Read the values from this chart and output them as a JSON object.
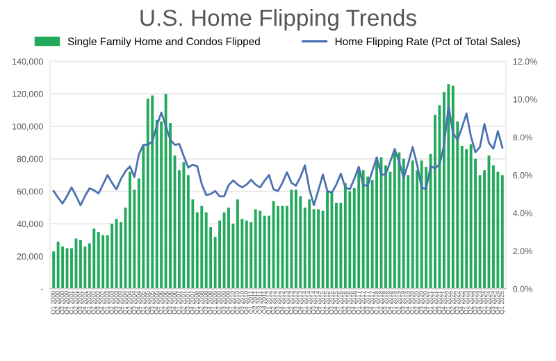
{
  "chart_data": {
    "type": "bar",
    "title": "U.S. Home Flipping Trends",
    "categories": [
      "Q1 2000",
      "Q2 2000",
      "Q3 2000",
      "Q4 2000",
      "Q1 2001",
      "Q2 2001",
      "Q3 2001",
      "Q4 2001",
      "Q1 2002",
      "Q2 2002",
      "Q3 2002",
      "Q4 2002",
      "Q1 2003",
      "Q2 2003",
      "Q3 2003",
      "Q4 2003",
      "Q1 2004",
      "Q2 2004",
      "Q3 2004",
      "Q4 2004",
      "Q1 2005",
      "Q2 2005",
      "Q3 2005",
      "Q4 2005",
      "Q1 2006",
      "Q2 2006",
      "Q3 2006",
      "Q4 2006",
      "Q1 2007",
      "Q2 2007",
      "Q3 2007",
      "Q4 2007",
      "Q1 2008",
      "Q2 2008",
      "Q3 2008",
      "Q4 2008",
      "Q1 2009",
      "Q2 2009",
      "Q3 2009",
      "Q4 2009",
      "Q1 2010",
      "Q2 2010",
      "Q3 2010",
      "Q4 2010",
      "Q1 2011",
      "Q2 2011",
      "Q3 2011",
      "Q4 2011",
      "Q1 2012",
      "Q2 2012",
      "Q3 2012",
      "Q4 2012",
      "Q1 2013",
      "Q2 2013",
      "Q3 2013",
      "Q4 2013",
      "Q1 2014",
      "Q2 2014",
      "Q3 2014",
      "Q4 2014",
      "Q1 2015",
      "Q2 2015",
      "Q3 2015",
      "Q4 2015",
      "Q1 2016",
      "Q2 2016",
      "Q3 2016",
      "Q4 2016",
      "Q1 2017",
      "Q2 2017",
      "Q3 2017",
      "Q4 2017",
      "Q1 2018",
      "Q2 2018",
      "Q3 2018",
      "Q4 2018",
      "Q1 2019",
      "Q2 2019",
      "Q3 2019",
      "Q4 2019",
      "Q1 2020",
      "Q2 2020",
      "Q3 2020",
      "Q4 2020",
      "Q1 2021",
      "Q2 2021",
      "Q3 2021",
      "Q4 2021",
      "Q1 2022",
      "Q2 2022",
      "Q3 2022",
      "Q4 2022",
      "Q1 2023",
      "Q2 2023",
      "Q3 2023",
      "Q4 2023",
      "Q1 2024",
      "Q2 2024",
      "Q3 2024",
      "Q4 2024",
      "Q1 2025"
    ],
    "series": [
      {
        "name": "Single Family Home and Condos Flipped",
        "color": "#22a95b",
        "values": [
          23000,
          29000,
          26000,
          25000,
          25000,
          31000,
          30000,
          26000,
          28000,
          37000,
          35000,
          33000,
          33000,
          40000,
          43000,
          41000,
          50000,
          72000,
          61000,
          68000,
          88000,
          117000,
          119000,
          104000,
          103000,
          120000,
          102000,
          82000,
          73000,
          78000,
          70000,
          55000,
          47000,
          51000,
          47000,
          38000,
          32000,
          42000,
          47000,
          50000,
          40000,
          55000,
          43000,
          42000,
          41000,
          49000,
          48000,
          45000,
          45000,
          54000,
          51000,
          51000,
          51000,
          61000,
          61000,
          57000,
          50000,
          55000,
          49000,
          49000,
          48000,
          60000,
          59000,
          53000,
          53000,
          65000,
          60000,
          62000,
          74000,
          73000,
          69000,
          67000,
          81000,
          81000,
          76000,
          72000,
          86000,
          84000,
          80000,
          70000,
          79000,
          73000,
          79000,
          75000,
          83000,
          107000,
          113000,
          121000,
          126000,
          125000,
          103000,
          88000,
          86000,
          89000,
          80000,
          70000,
          73000,
          82000,
          76000,
          72000,
          70000
        ]
      },
      {
        "name": "Home Flipping Rate (Pct of Total Sales)",
        "type": "line",
        "axis": "y2",
        "color": "#4a72b0",
        "values": [
          5.16,
          4.8,
          4.5,
          4.9,
          5.35,
          4.9,
          4.41,
          4.9,
          5.3,
          5.2,
          5.03,
          5.5,
          6.0,
          5.6,
          5.25,
          5.8,
          6.2,
          6.46,
          5.9,
          7.1,
          7.6,
          7.6,
          7.77,
          8.6,
          9.3,
          8.6,
          7.86,
          7.6,
          7.64,
          7.0,
          6.4,
          6.55,
          6.46,
          5.53,
          4.95,
          5.0,
          5.16,
          4.88,
          4.88,
          5.47,
          5.72,
          5.5,
          5.35,
          5.5,
          5.75,
          5.5,
          5.35,
          5.7,
          6.0,
          5.25,
          5.16,
          5.6,
          6.15,
          5.59,
          5.44,
          5.9,
          6.52,
          5.25,
          4.41,
          5.2,
          6.03,
          5.16,
          5.07,
          5.5,
          6.07,
          5.35,
          5.25,
          5.8,
          6.44,
          5.47,
          5.44,
          6.2,
          6.93,
          6.03,
          6.03,
          6.7,
          7.37,
          6.7,
          5.85,
          6.6,
          7.49,
          6.55,
          5.35,
          5.25,
          6.46,
          6.37,
          6.55,
          7.58,
          9.63,
          8.23,
          7.86,
          8.51,
          9.25,
          8.04,
          7.2,
          7.49,
          8.7,
          7.7,
          7.39,
          8.32,
          7.45
        ]
      }
    ],
    "ylim": [
      0,
      140000
    ],
    "yticks": [
      {
        "value": 0,
        "label": "-"
      },
      {
        "value": 20000,
        "label": "20,000"
      },
      {
        "value": 40000,
        "label": "40,000"
      },
      {
        "value": 60000,
        "label": "60,000"
      },
      {
        "value": 80000,
        "label": "80,000"
      },
      {
        "value": 100000,
        "label": "100,000"
      },
      {
        "value": 120000,
        "label": "120,000"
      },
      {
        "value": 140000,
        "label": "140,000"
      }
    ],
    "y2lim": [
      0,
      12
    ],
    "y2ticks": [
      {
        "value": 0,
        "label": "0.0%"
      },
      {
        "value": 2,
        "label": "2.0%"
      },
      {
        "value": 4,
        "label": "4.0%"
      },
      {
        "value": 6,
        "label": "6.0%"
      },
      {
        "value": 8,
        "label": "8.0%"
      },
      {
        "value": 10,
        "label": "10.0%"
      },
      {
        "value": 12,
        "label": "12.0%"
      }
    ],
    "grid": "y",
    "legend": "top"
  }
}
